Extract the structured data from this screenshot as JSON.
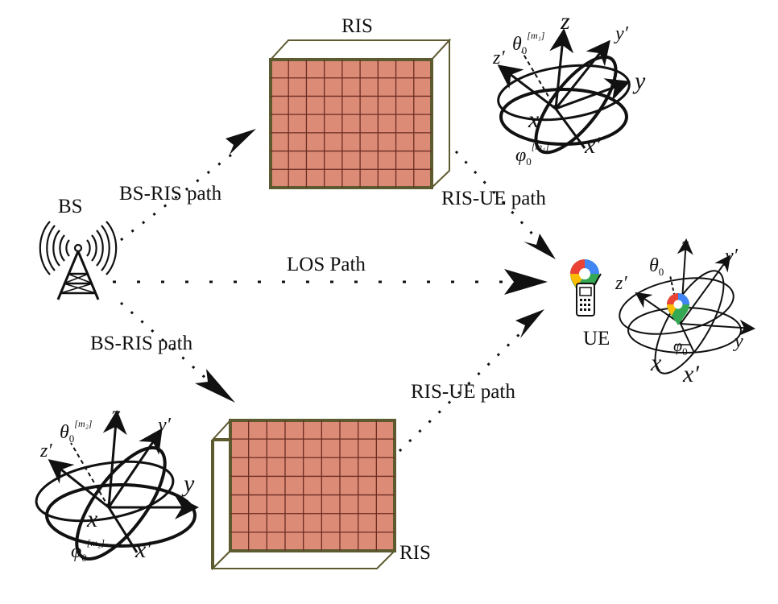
{
  "labels": {
    "bs": "BS",
    "ue": "UE",
    "ris_top": "RIS",
    "ris_bottom": "RIS",
    "bs_ris_top": "BS-RIS path",
    "bs_ris_bottom": "BS-RIS path",
    "ris_ue_top": "RIS-UE path",
    "ris_ue_bottom": "RIS-UE path",
    "los": "LOS Path"
  },
  "axes": {
    "z": "z",
    "y": "y",
    "x": "x",
    "zp": "z′",
    "yp": "y′",
    "xp": "x′",
    "theta": "θ",
    "phi": "φ",
    "zero": "0",
    "m1": "[m₁]",
    "m2": "[m₂]"
  },
  "colors": {
    "ris_fill": "#dc8b77",
    "ris_grid": "#6b2d22",
    "ris_frame": "#5e5a30",
    "ink": "#111111",
    "pin_red": "#ea4335",
    "pin_yellow": "#fbbc04",
    "pin_green": "#34a853",
    "pin_blue": "#4285f4"
  },
  "icons": {
    "bs": "antenna-tower-icon",
    "ue": "map-pin-phone-icon"
  }
}
